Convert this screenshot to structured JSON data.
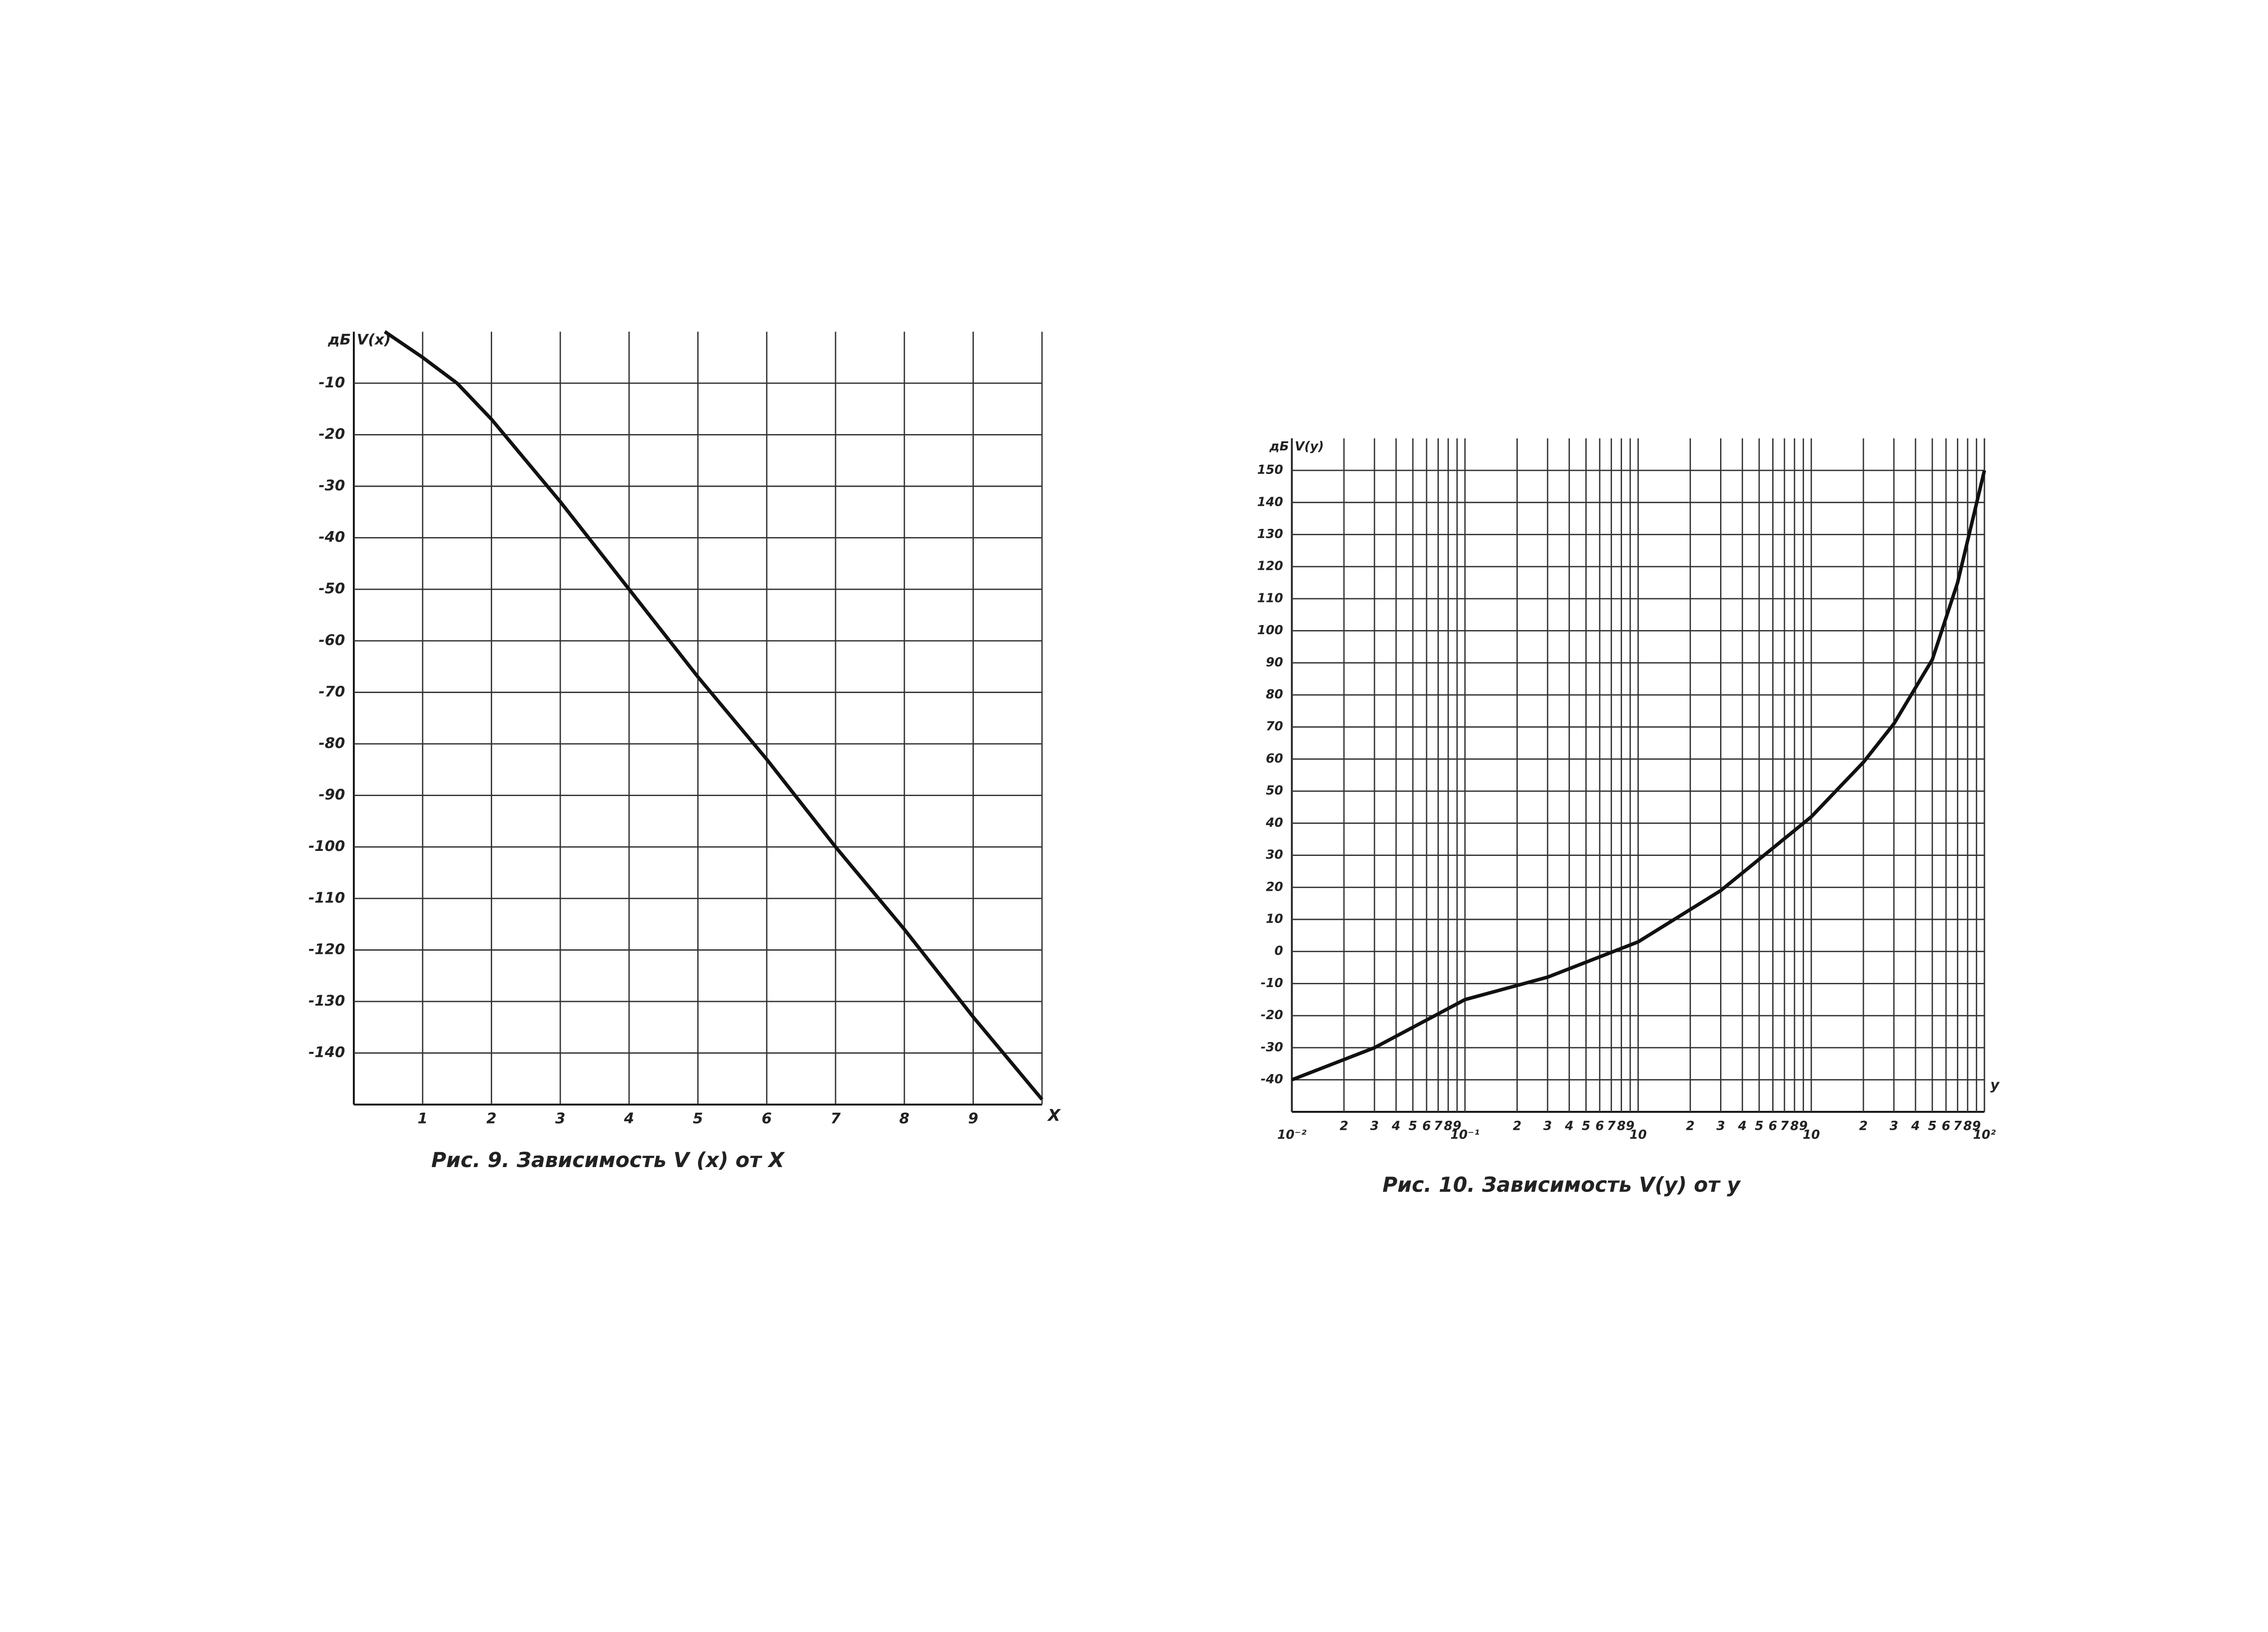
{
  "chart_data": [
    {
      "type": "line",
      "caption": "Рис. 9.   Зависимость   V (x)  от X",
      "y_unit": "дБ",
      "ylabel": "V(x)",
      "xlabel": "X",
      "xlim": [
        0,
        10
      ],
      "xticks": [
        1,
        2,
        3,
        4,
        5,
        6,
        7,
        8,
        9
      ],
      "ylim": [
        -150,
        0
      ],
      "yticks": [
        -10,
        -20,
        -30,
        -40,
        -50,
        -60,
        -70,
        -80,
        -90,
        -100,
        -110,
        -120,
        -130,
        -140
      ],
      "grid": true,
      "xscale": "linear",
      "x": [
        0.45,
        1,
        1.5,
        2,
        3,
        4,
        5,
        6,
        7,
        8,
        9,
        10
      ],
      "series": [
        {
          "name": "V(x)",
          "color": "#111111",
          "values": [
            0,
            -5,
            -10,
            -17,
            -33,
            -50,
            -67,
            -83,
            -100,
            -116,
            -133,
            -149
          ]
        }
      ]
    },
    {
      "type": "line",
      "caption": "Рис. 10.   Зависимость  V(y)  от y",
      "y_unit": "дБ",
      "ylabel": "V(y)",
      "xlabel": "y",
      "xlim": [
        0.01,
        100
      ],
      "xscale": "log",
      "xticks": [
        {
          "value": 0.01,
          "label": "10⁻²"
        },
        {
          "value": 0.02,
          "label": "2"
        },
        {
          "value": 0.03,
          "label": "3"
        },
        {
          "value": 0.04,
          "label": "4"
        },
        {
          "value": 0.05,
          "label": "5"
        },
        {
          "value": 0.06,
          "label": "6"
        },
        {
          "value": 0.07,
          "label": "7"
        },
        {
          "value": 0.08,
          "label": "8"
        },
        {
          "value": 0.09,
          "label": "9"
        },
        {
          "value": 0.1,
          "label": "10⁻¹"
        },
        {
          "value": 0.2,
          "label": "2"
        },
        {
          "value": 0.3,
          "label": "3"
        },
        {
          "value": 0.4,
          "label": "4"
        },
        {
          "value": 0.5,
          "label": "5"
        },
        {
          "value": 0.6,
          "label": "6"
        },
        {
          "value": 0.7,
          "label": "7"
        },
        {
          "value": 0.8,
          "label": "8"
        },
        {
          "value": 0.9,
          "label": "9"
        },
        {
          "value": 1,
          "label": "10"
        },
        {
          "value": 2,
          "label": "2"
        },
        {
          "value": 3,
          "label": "3"
        },
        {
          "value": 4,
          "label": "4"
        },
        {
          "value": 5,
          "label": "5"
        },
        {
          "value": 6,
          "label": "6"
        },
        {
          "value": 7,
          "label": "7"
        },
        {
          "value": 8,
          "label": "8"
        },
        {
          "value": 9,
          "label": "9"
        },
        {
          "value": 10,
          "label": "10"
        },
        {
          "value": 20,
          "label": "2"
        },
        {
          "value": 30,
          "label": "3"
        },
        {
          "value": 40,
          "label": "4"
        },
        {
          "value": 50,
          "label": "5"
        },
        {
          "value": 60,
          "label": "6"
        },
        {
          "value": 70,
          "label": "7"
        },
        {
          "value": 80,
          "label": "8"
        },
        {
          "value": 90,
          "label": "9"
        },
        {
          "value": 100,
          "label": "10²"
        }
      ],
      "ylim": [
        -50,
        160
      ],
      "yticks": [
        150,
        140,
        130,
        120,
        110,
        100,
        90,
        80,
        70,
        60,
        50,
        40,
        30,
        20,
        10,
        0,
        -10,
        -20,
        -30,
        -40
      ],
      "grid": true,
      "x": [
        0.01,
        0.03,
        0.1,
        0.3,
        1,
        3,
        10,
        20,
        30,
        50,
        70,
        100
      ],
      "series": [
        {
          "name": "V(y)",
          "color": "#111111",
          "values": [
            -40,
            -30,
            -15,
            -8,
            3,
            19,
            42,
            59,
            71,
            91,
            115,
            150
          ]
        }
      ]
    }
  ]
}
